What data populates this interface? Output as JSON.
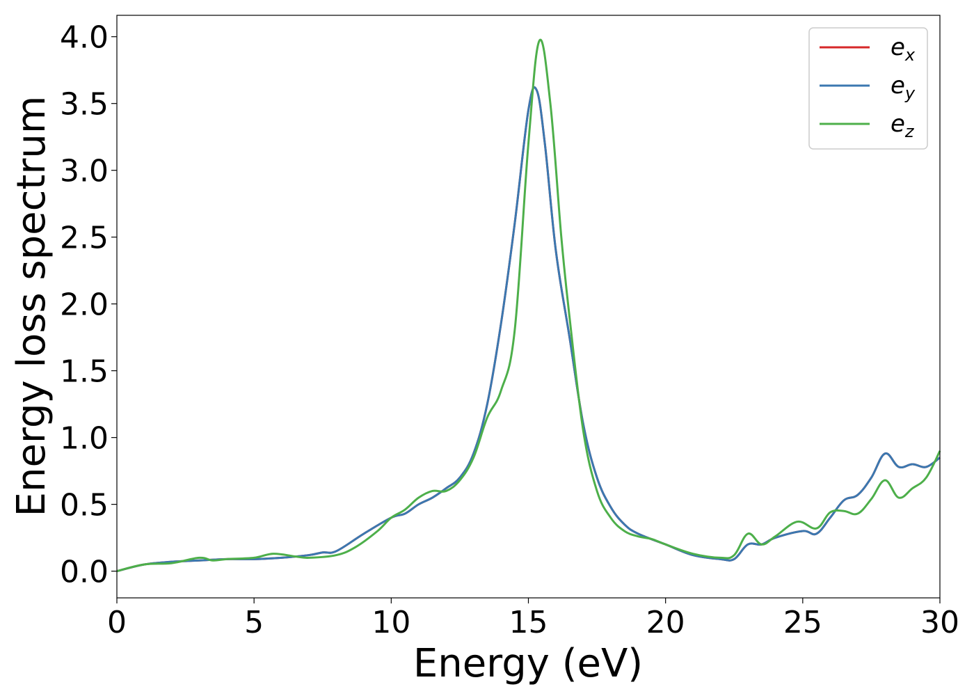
{
  "chart_data": {
    "type": "line",
    "xlabel": "Energy (eV)",
    "ylabel": "Energy loss spectrum",
    "xlim": [
      0,
      30
    ],
    "ylim": [
      -0.2,
      4.16
    ],
    "xticks": [
      0,
      5,
      10,
      15,
      20,
      25,
      30
    ],
    "xtick_labels": [
      "0",
      "5",
      "10",
      "15",
      "20",
      "25",
      "30"
    ],
    "yticks": [
      0.0,
      0.5,
      1.0,
      1.5,
      2.0,
      2.5,
      3.0,
      3.5,
      4.0
    ],
    "ytick_labels": [
      "0.0",
      "0.5",
      "1.0",
      "1.5",
      "2.0",
      "2.5",
      "3.0",
      "3.5",
      "4.0"
    ],
    "grid": false,
    "legend_position": "top-right",
    "series": [
      {
        "name": "e",
        "subscript": "x",
        "color": "#d62728",
        "x": [
          0,
          1,
          2,
          3,
          4,
          5,
          6,
          7,
          7.5,
          8,
          9,
          10,
          10.5,
          11,
          11.5,
          12,
          12.5,
          13,
          13.5,
          14,
          14.5,
          15,
          15.3,
          15.6,
          16,
          16.5,
          17,
          17.5,
          18,
          18.5,
          19,
          20,
          21,
          22,
          22.5,
          23,
          23.5,
          24,
          25,
          25.5,
          26,
          26.5,
          27,
          27.5,
          28,
          28.5,
          29,
          29.5,
          30
        ],
        "values": [
          0.0,
          0.05,
          0.07,
          0.08,
          0.09,
          0.09,
          0.1,
          0.12,
          0.14,
          0.15,
          0.28,
          0.4,
          0.43,
          0.5,
          0.55,
          0.62,
          0.7,
          0.88,
          1.25,
          1.85,
          2.6,
          3.45,
          3.6,
          3.2,
          2.4,
          1.75,
          1.1,
          0.7,
          0.48,
          0.35,
          0.28,
          0.2,
          0.12,
          0.09,
          0.09,
          0.2,
          0.2,
          0.25,
          0.3,
          0.28,
          0.4,
          0.53,
          0.57,
          0.7,
          0.88,
          0.78,
          0.8,
          0.78,
          0.85
        ]
      },
      {
        "name": "e",
        "subscript": "y",
        "color": "#3b78b0",
        "x": [
          0,
          1,
          2,
          3,
          4,
          5,
          6,
          7,
          7.5,
          8,
          9,
          10,
          10.5,
          11,
          11.5,
          12,
          12.5,
          13,
          13.5,
          14,
          14.5,
          15,
          15.3,
          15.6,
          16,
          16.5,
          17,
          17.5,
          18,
          18.5,
          19,
          20,
          21,
          22,
          22.5,
          23,
          23.5,
          24,
          25,
          25.5,
          26,
          26.5,
          27,
          27.5,
          28,
          28.5,
          29,
          29.5,
          30
        ],
        "values": [
          0.0,
          0.05,
          0.07,
          0.08,
          0.09,
          0.09,
          0.1,
          0.12,
          0.14,
          0.15,
          0.28,
          0.4,
          0.43,
          0.5,
          0.55,
          0.62,
          0.7,
          0.88,
          1.25,
          1.85,
          2.6,
          3.45,
          3.6,
          3.2,
          2.4,
          1.75,
          1.1,
          0.7,
          0.48,
          0.35,
          0.28,
          0.2,
          0.12,
          0.09,
          0.09,
          0.2,
          0.2,
          0.25,
          0.3,
          0.28,
          0.4,
          0.53,
          0.57,
          0.7,
          0.88,
          0.78,
          0.8,
          0.78,
          0.85
        ]
      },
      {
        "name": "e",
        "subscript": "z",
        "color": "#4daf4a",
        "x": [
          0,
          1,
          2,
          3,
          3.5,
          4,
          5,
          5.7,
          6.5,
          7,
          8,
          8.7,
          9.5,
          10,
          10.5,
          11,
          11.5,
          12,
          12.5,
          13,
          13.5,
          14,
          14.5,
          15,
          15.4,
          15.8,
          16.2,
          16.5,
          17,
          17.5,
          18,
          18.5,
          19,
          19.5,
          20,
          21,
          22,
          22.5,
          23,
          23.5,
          24,
          24.8,
          25.5,
          26,
          26.5,
          27,
          27.5,
          28,
          28.5,
          29,
          29.5,
          30
        ],
        "values": [
          0.0,
          0.05,
          0.06,
          0.1,
          0.08,
          0.09,
          0.1,
          0.13,
          0.11,
          0.1,
          0.12,
          0.18,
          0.3,
          0.4,
          0.46,
          0.55,
          0.6,
          0.6,
          0.68,
          0.85,
          1.15,
          1.35,
          1.8,
          3.2,
          3.97,
          3.5,
          2.5,
          1.9,
          1.05,
          0.6,
          0.4,
          0.3,
          0.26,
          0.24,
          0.2,
          0.13,
          0.1,
          0.12,
          0.28,
          0.2,
          0.26,
          0.37,
          0.32,
          0.44,
          0.45,
          0.43,
          0.54,
          0.68,
          0.55,
          0.62,
          0.7,
          0.9
        ]
      }
    ]
  }
}
